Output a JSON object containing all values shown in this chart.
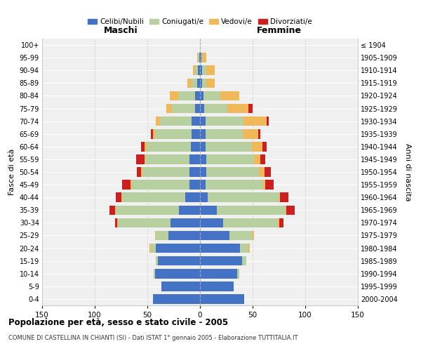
{
  "age_groups": [
    "0-4",
    "5-9",
    "10-14",
    "15-19",
    "20-24",
    "25-29",
    "30-34",
    "35-39",
    "40-44",
    "45-49",
    "50-54",
    "55-59",
    "60-64",
    "65-69",
    "70-74",
    "75-79",
    "80-84",
    "85-89",
    "90-94",
    "95-99",
    "100+"
  ],
  "birth_years": [
    "2000-2004",
    "1995-1999",
    "1990-1994",
    "1985-1989",
    "1980-1984",
    "1975-1979",
    "1970-1974",
    "1965-1969",
    "1960-1964",
    "1955-1959",
    "1950-1954",
    "1945-1949",
    "1940-1944",
    "1935-1939",
    "1930-1934",
    "1925-1929",
    "1920-1924",
    "1915-1919",
    "1910-1914",
    "1905-1909",
    "≤ 1904"
  ],
  "males": {
    "celibi": [
      45,
      37,
      43,
      40,
      42,
      30,
      28,
      20,
      14,
      10,
      10,
      10,
      9,
      8,
      8,
      5,
      5,
      3,
      2,
      1,
      0
    ],
    "coniugati": [
      0,
      0,
      1,
      2,
      5,
      12,
      50,
      60,
      60,
      55,
      45,
      42,
      42,
      35,
      30,
      22,
      16,
      5,
      3,
      1,
      0
    ],
    "vedovi": [
      0,
      0,
      0,
      0,
      1,
      1,
      1,
      1,
      1,
      1,
      1,
      1,
      2,
      2,
      4,
      5,
      8,
      4,
      2,
      1,
      0
    ],
    "divorziati": [
      0,
      0,
      0,
      0,
      0,
      0,
      2,
      5,
      5,
      8,
      4,
      8,
      3,
      2,
      0,
      0,
      0,
      0,
      0,
      0,
      0
    ]
  },
  "females": {
    "nubili": [
      42,
      32,
      35,
      40,
      38,
      28,
      22,
      16,
      7,
      5,
      6,
      6,
      5,
      5,
      5,
      4,
      3,
      2,
      2,
      1,
      0
    ],
    "coniugate": [
      0,
      0,
      2,
      4,
      8,
      22,
      52,
      65,
      68,
      55,
      50,
      45,
      44,
      36,
      36,
      22,
      16,
      4,
      4,
      1,
      0
    ],
    "vedove": [
      0,
      0,
      0,
      0,
      1,
      1,
      1,
      1,
      1,
      2,
      5,
      6,
      10,
      14,
      22,
      20,
      18,
      8,
      8,
      4,
      0
    ],
    "divorziate": [
      0,
      0,
      0,
      0,
      0,
      0,
      4,
      8,
      8,
      8,
      6,
      5,
      4,
      2,
      2,
      4,
      0,
      0,
      0,
      0,
      0
    ]
  },
  "colors": {
    "celibi": "#4472c4",
    "coniugati": "#b8cfa0",
    "vedovi": "#f0b858",
    "divorziati": "#cc2020"
  },
  "title": "Popolazione per età, sesso e stato civile - 2005",
  "subtitle": "COMUNE DI CASTELLINA IN CHIANTI (SI) - Dati ISTAT 1° gennaio 2005 - Elaborazione TUTTITALIA.IT",
  "xlabel_left": "Maschi",
  "xlabel_right": "Femmine",
  "ylabel_left": "Fasce di età",
  "ylabel_right": "Anni di nascita",
  "xlim": 150,
  "legend_labels": [
    "Celibi/Nubili",
    "Coniugati/e",
    "Vedovi/e",
    "Divorziati/e"
  ],
  "background_color": "#ffffff",
  "bar_height": 0.75,
  "grid_color": "#cccccc"
}
